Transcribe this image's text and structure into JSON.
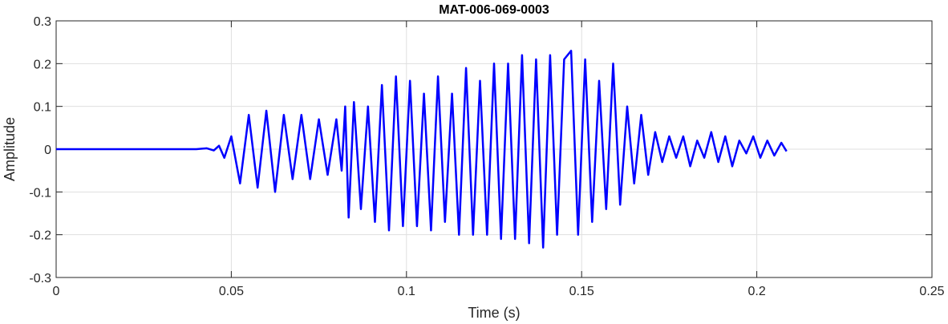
{
  "chart_data": {
    "type": "line",
    "title": "MAT-006-069-0003",
    "xlabel": "Time (s)",
    "ylabel": "Amplitude",
    "xlim": [
      0,
      0.25
    ],
    "ylim": [
      -0.3,
      0.3
    ],
    "x_ticks": [
      0,
      0.05,
      0.1,
      0.15,
      0.2,
      0.25
    ],
    "x_tick_labels": [
      "0",
      "0.05",
      "0.1",
      "0.15",
      "0.2",
      "0.25"
    ],
    "y_ticks": [
      -0.3,
      -0.2,
      -0.1,
      0,
      0.1,
      0.2,
      0.3
    ],
    "y_tick_labels": [
      "-0.3",
      "-0.2",
      "-0.1",
      "0",
      "0.1",
      "0.2",
      "0.3"
    ],
    "grid": true,
    "line_color": "#0000ff",
    "axis_color": "#262626",
    "grid_color": "#dfdfdf",
    "series": [
      {
        "x": [
          0,
          0.04,
          0.043,
          0.045,
          0.0465,
          0.048,
          0.05,
          0.0525,
          0.055,
          0.0575,
          0.06,
          0.0625,
          0.065,
          0.0675,
          0.07,
          0.0725,
          0.075,
          0.0775,
          0.08,
          0.0815,
          0.0825,
          0.0835,
          0.085,
          0.087,
          0.089,
          0.091,
          0.093,
          0.095,
          0.097,
          0.099,
          0.101,
          0.103,
          0.105,
          0.107,
          0.109,
          0.111,
          0.113,
          0.115,
          0.117,
          0.119,
          0.121,
          0.123,
          0.125,
          0.127,
          0.129,
          0.131,
          0.133,
          0.135,
          0.137,
          0.139,
          0.141,
          0.143,
          0.145,
          0.147,
          0.149,
          0.151,
          0.153,
          0.155,
          0.157,
          0.159,
          0.161,
          0.163,
          0.165,
          0.167,
          0.169,
          0.171,
          0.173,
          0.175,
          0.177,
          0.179,
          0.181,
          0.183,
          0.185,
          0.187,
          0.189,
          0.191,
          0.193,
          0.195,
          0.197,
          0.199,
          0.201,
          0.203,
          0.205,
          0.207,
          0.2085
        ],
        "y": [
          0,
          0,
          0.002,
          -0.003,
          0.008,
          -0.02,
          0.03,
          -0.08,
          0.08,
          -0.09,
          0.09,
          -0.1,
          0.08,
          -0.07,
          0.08,
          -0.07,
          0.07,
          -0.06,
          0.07,
          -0.05,
          0.1,
          -0.16,
          0.11,
          -0.14,
          0.1,
          -0.17,
          0.15,
          -0.19,
          0.17,
          -0.18,
          0.16,
          -0.18,
          0.13,
          -0.19,
          0.17,
          -0.17,
          0.13,
          -0.2,
          0.19,
          -0.2,
          0.16,
          -0.2,
          0.2,
          -0.21,
          0.2,
          -0.21,
          0.22,
          -0.22,
          0.21,
          -0.23,
          0.22,
          -0.2,
          0.21,
          0.23,
          -0.2,
          0.21,
          -0.17,
          0.16,
          -0.14,
          0.2,
          -0.13,
          0.1,
          -0.08,
          0.08,
          -0.06,
          0.04,
          -0.03,
          0.03,
          -0.02,
          0.03,
          -0.04,
          0.02,
          -0.02,
          0.04,
          -0.03,
          0.03,
          -0.04,
          0.02,
          -0.01,
          0.03,
          -0.02,
          0.02,
          -0.015,
          0.015,
          -0.005
        ]
      }
    ]
  }
}
